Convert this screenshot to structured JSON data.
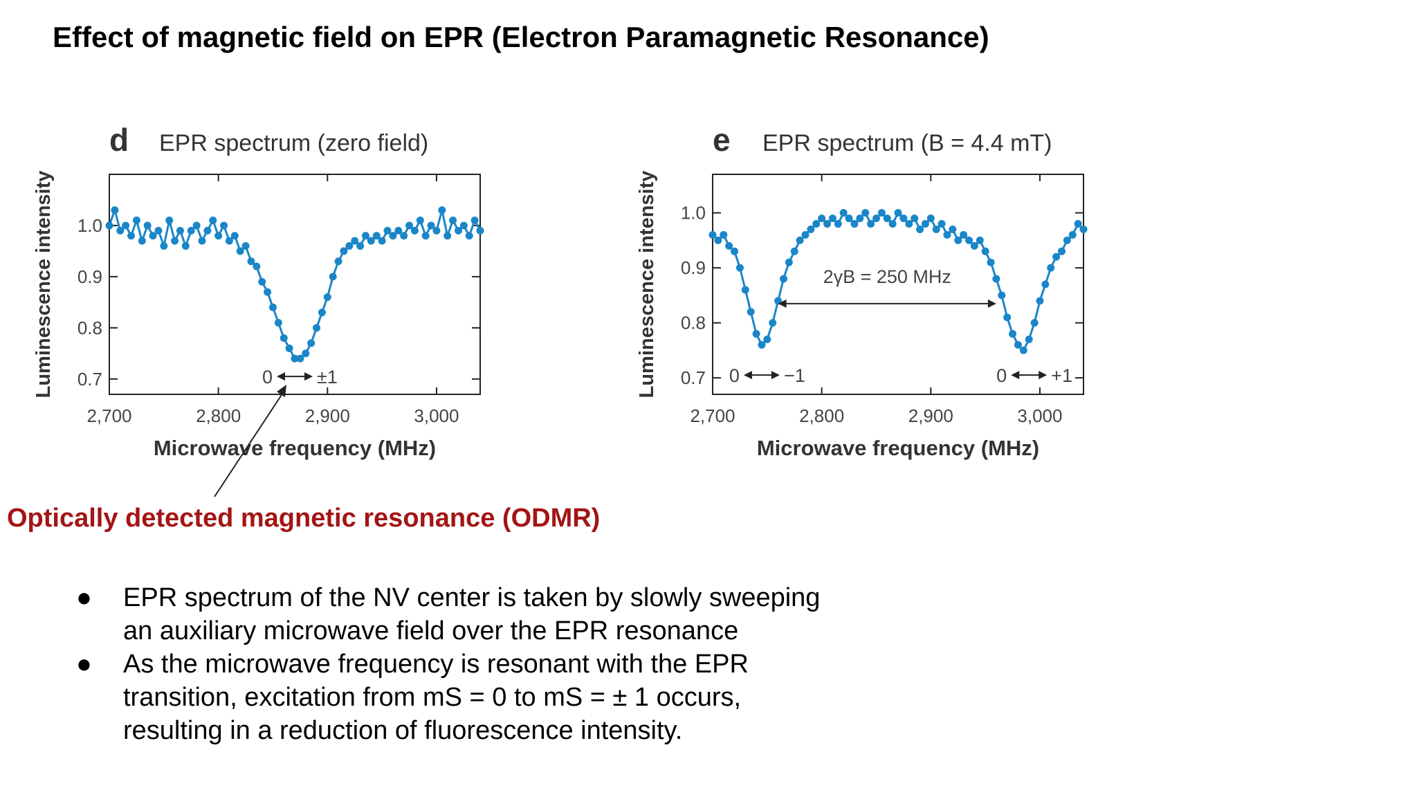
{
  "slide": {
    "title": "Effect of magnetic field on EPR (Electron Paramagnetic Resonance)",
    "callout": "Optically detected magnetic resonance (ODMR)",
    "bullets": [
      "EPR spectrum of the NV center is taken by slowly sweeping an auxiliary microwave field over the EPR resonance",
      "As the microwave frequency is resonant with the EPR transition, excitation from mS = 0 to mS = ± 1 occurs, resulting in a reduction of fluorescence intensity."
    ],
    "bullet_symbol": "●"
  },
  "colors": {
    "data": "#1a86c8",
    "callout": "#a31515",
    "axis": "#222222"
  },
  "chart_data": [
    {
      "type": "scatter",
      "panel_letter": "d",
      "title": "EPR spectrum (zero field)",
      "xlabel": "Microwave frequency (MHz)",
      "ylabel": "Luminescence intensity",
      "xlim": [
        2700,
        3040
      ],
      "ylim": [
        0.67,
        1.1
      ],
      "xticks": [
        2700,
        2800,
        2900,
        3000
      ],
      "xtick_labels": [
        "2,700",
        "2,800",
        "2,900",
        "3,000"
      ],
      "yticks": [
        0.7,
        0.8,
        0.9,
        1.0
      ],
      "ytick_labels": [
        "0.7",
        "0.8",
        "0.9",
        "1.0"
      ],
      "annotations": [
        {
          "text_left": "0",
          "text_right": "±1",
          "x": 2870,
          "y": 0.705
        }
      ],
      "x": [
        2700,
        2705,
        2710,
        2715,
        2720,
        2725,
        2730,
        2735,
        2740,
        2745,
        2750,
        2755,
        2760,
        2765,
        2770,
        2775,
        2780,
        2785,
        2790,
        2795,
        2800,
        2805,
        2810,
        2815,
        2820,
        2825,
        2830,
        2835,
        2840,
        2845,
        2850,
        2855,
        2860,
        2865,
        2870,
        2875,
        2880,
        2885,
        2890,
        2895,
        2900,
        2905,
        2910,
        2915,
        2920,
        2925,
        2930,
        2935,
        2940,
        2945,
        2950,
        2955,
        2960,
        2965,
        2970,
        2975,
        2980,
        2985,
        2990,
        2995,
        3000,
        3005,
        3010,
        3015,
        3020,
        3025,
        3030,
        3035,
        3040
      ],
      "y": [
        1.0,
        1.03,
        0.99,
        1.0,
        0.98,
        1.01,
        0.97,
        1.0,
        0.98,
        0.99,
        0.96,
        1.01,
        0.97,
        0.99,
        0.96,
        0.99,
        1.0,
        0.97,
        0.99,
        1.01,
        0.98,
        1.0,
        0.97,
        0.98,
        0.95,
        0.96,
        0.93,
        0.92,
        0.89,
        0.87,
        0.84,
        0.81,
        0.78,
        0.76,
        0.74,
        0.74,
        0.75,
        0.77,
        0.8,
        0.83,
        0.86,
        0.9,
        0.93,
        0.95,
        0.96,
        0.97,
        0.96,
        0.98,
        0.97,
        0.98,
        0.97,
        0.99,
        0.98,
        0.99,
        0.98,
        1.0,
        0.99,
        1.01,
        0.98,
        1.0,
        0.99,
        1.03,
        0.98,
        1.01,
        0.99,
        1.0,
        0.98,
        1.01,
        0.99
      ]
    },
    {
      "type": "scatter",
      "panel_letter": "e",
      "title": "EPR spectrum (B = 4.4 mT)",
      "xlabel": "Microwave frequency (MHz)",
      "ylabel": "Luminescence intensity",
      "xlim": [
        2700,
        3040
      ],
      "ylim": [
        0.67,
        1.07
      ],
      "xticks": [
        2700,
        2800,
        2900,
        3000
      ],
      "xtick_labels": [
        "2,700",
        "2,800",
        "2,900",
        "3,000"
      ],
      "yticks": [
        0.7,
        0.8,
        0.9,
        1.0
      ],
      "ytick_labels": [
        "0.7",
        "0.8",
        "0.9",
        "1.0"
      ],
      "annotations": [
        {
          "text": "2γB = 250 MHz",
          "x": 2860,
          "y": 0.835
        },
        {
          "text_left": "0",
          "text_right": "−1",
          "x": 2745,
          "y": 0.705
        },
        {
          "text_left": "0",
          "text_right": "+1",
          "x": 2990,
          "y": 0.705
        }
      ],
      "x": [
        2700,
        2705,
        2710,
        2715,
        2720,
        2725,
        2730,
        2735,
        2740,
        2745,
        2750,
        2755,
        2760,
        2765,
        2770,
        2775,
        2780,
        2785,
        2790,
        2795,
        2800,
        2805,
        2810,
        2815,
        2820,
        2825,
        2830,
        2835,
        2840,
        2845,
        2850,
        2855,
        2860,
        2865,
        2870,
        2875,
        2880,
        2885,
        2890,
        2895,
        2900,
        2905,
        2910,
        2915,
        2920,
        2925,
        2930,
        2935,
        2940,
        2945,
        2950,
        2955,
        2960,
        2965,
        2970,
        2975,
        2980,
        2985,
        2990,
        2995,
        3000,
        3005,
        3010,
        3015,
        3020,
        3025,
        3030,
        3035,
        3040
      ],
      "y": [
        0.96,
        0.95,
        0.96,
        0.94,
        0.93,
        0.9,
        0.86,
        0.82,
        0.78,
        0.76,
        0.77,
        0.8,
        0.84,
        0.88,
        0.91,
        0.93,
        0.95,
        0.96,
        0.97,
        0.98,
        0.99,
        0.98,
        0.99,
        0.98,
        1.0,
        0.99,
        0.98,
        0.99,
        1.0,
        0.98,
        0.99,
        1.0,
        0.99,
        0.98,
        1.0,
        0.99,
        0.98,
        0.99,
        0.97,
        0.98,
        0.99,
        0.97,
        0.98,
        0.96,
        0.97,
        0.95,
        0.96,
        0.95,
        0.94,
        0.95,
        0.93,
        0.91,
        0.88,
        0.85,
        0.81,
        0.78,
        0.76,
        0.75,
        0.77,
        0.8,
        0.84,
        0.87,
        0.9,
        0.92,
        0.93,
        0.95,
        0.96,
        0.98,
        0.97
      ]
    }
  ]
}
